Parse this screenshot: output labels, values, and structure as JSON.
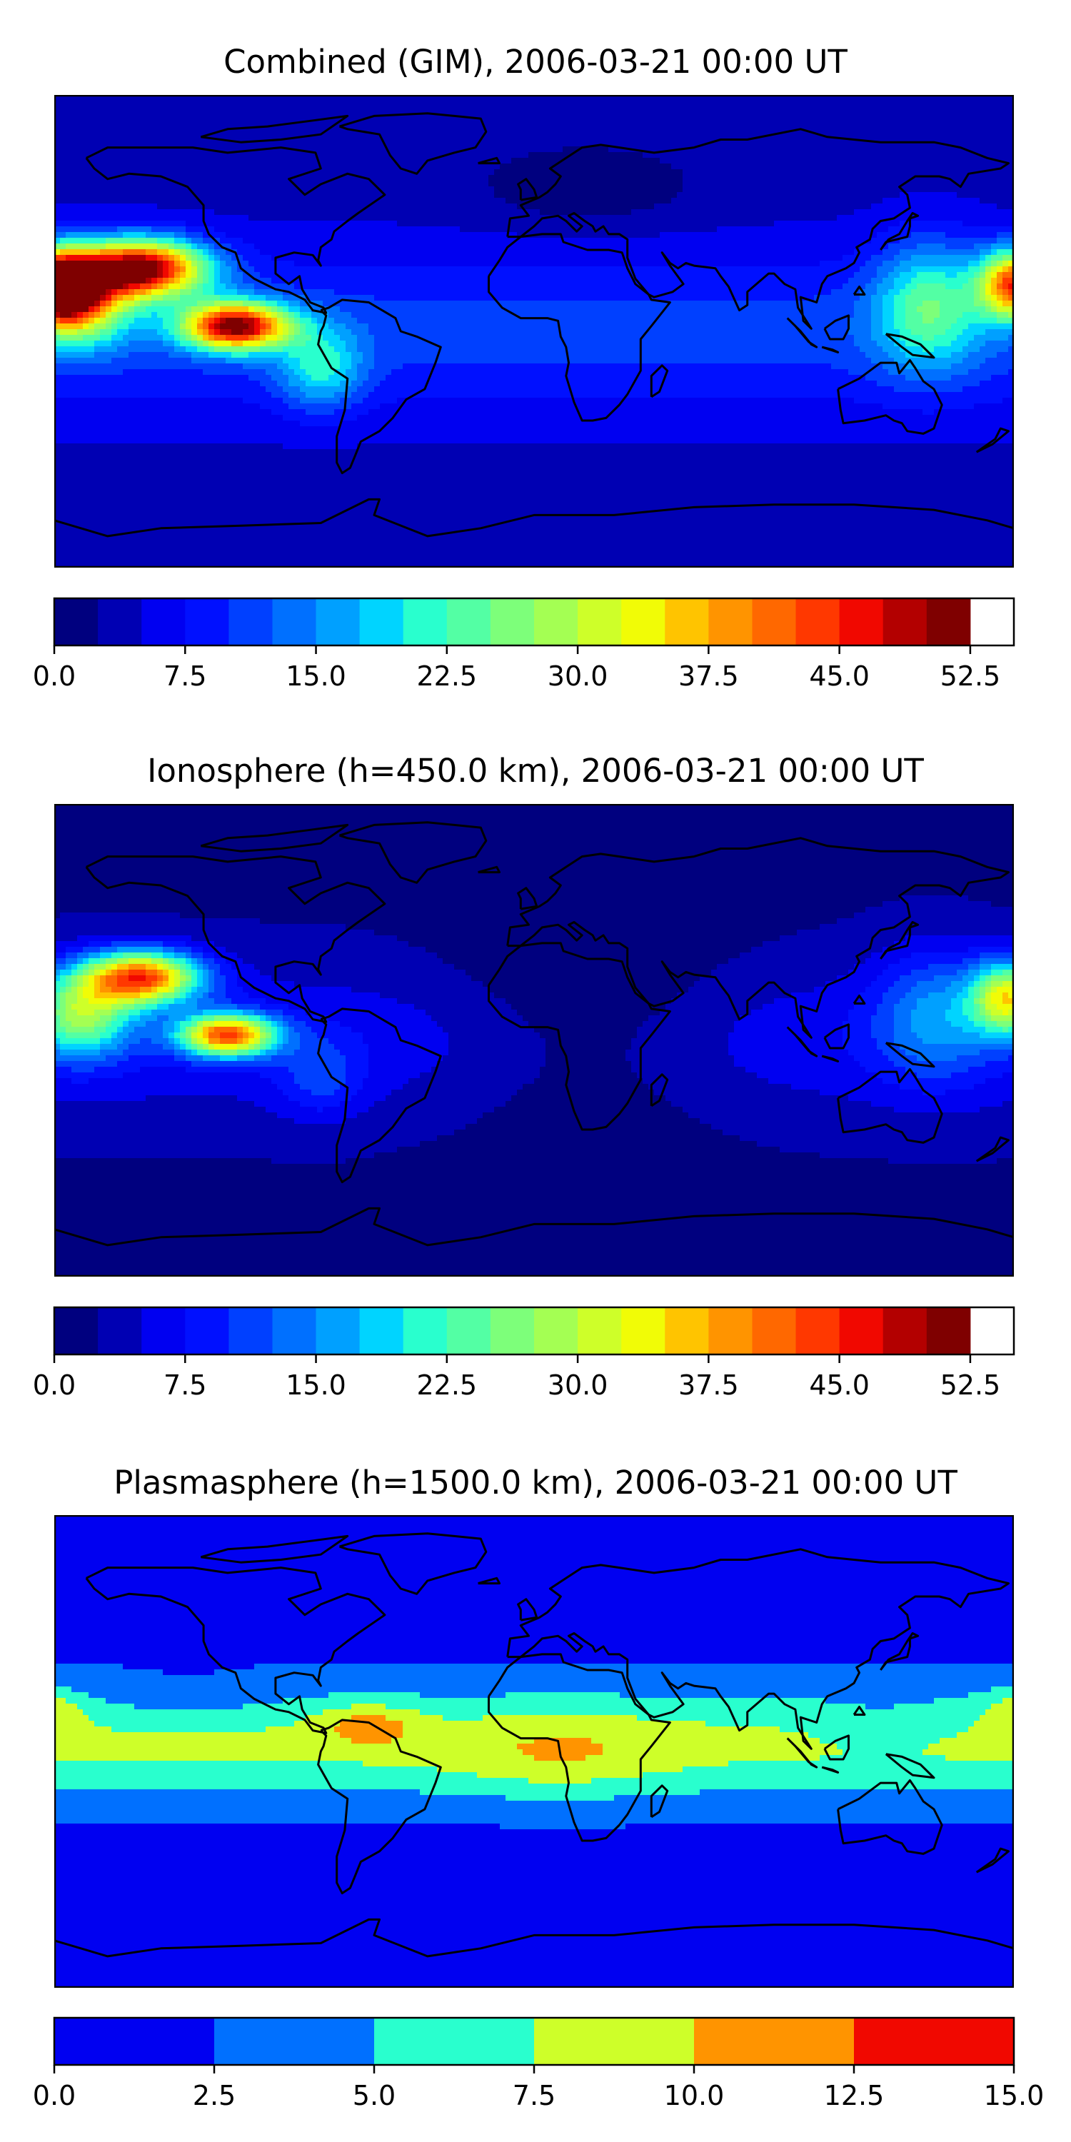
{
  "chart_data": [
    {
      "type": "heatmap",
      "id": "gim",
      "title": "Combined (GIM), 2006-03-21 00:00 UT",
      "colorbar": {
        "ticks": [
          "0.0",
          "7.5",
          "15.0",
          "22.5",
          "30.0",
          "37.5",
          "45.0",
          "52.5"
        ],
        "range": [
          0,
          55
        ],
        "level_step": 2.5,
        "colors": [
          "#00007f",
          "#0000b3",
          "#0000f1",
          "#0010ff",
          "#0040ff",
          "#0070ff",
          "#00a0ff",
          "#00d4ff",
          "#29ffce",
          "#53ffa4",
          "#7dff7a",
          "#a4ff53",
          "#ceff29",
          "#f1fc06",
          "#ffc400",
          "#ff9400",
          "#ff6800",
          "#ff3800",
          "#f10800",
          "#b30000",
          "#7f0000"
        ]
      },
      "features": [
        {
          "lon": -147,
          "lat": 24,
          "value": 53
        },
        {
          "lon": -112,
          "lat": 2,
          "value": 50
        },
        {
          "lon": -170,
          "lat": 12,
          "value": 44
        },
        {
          "lon": 178,
          "lat": 18,
          "value": 42
        },
        {
          "lon": 150,
          "lat": 12,
          "value": 25
        },
        {
          "lon": -80,
          "lat": -14,
          "value": 22
        },
        {
          "lon": 30,
          "lat": -28,
          "value": 12
        },
        {
          "lon": 20,
          "lat": 55,
          "value": 5
        },
        {
          "lon": 20,
          "lat": -55,
          "value": 5
        }
      ]
    },
    {
      "type": "heatmap",
      "id": "iono",
      "title": "Ionosphere  (h=450.0 km), 2006-03-21 00:00 UT",
      "colorbar": {
        "ticks": [
          "0.0",
          "7.5",
          "15.0",
          "22.5",
          "30.0",
          "37.5",
          "45.0",
          "52.5"
        ],
        "range": [
          0,
          55
        ],
        "level_step": 2.5,
        "colors": [
          "#00007f",
          "#0000b3",
          "#0000f1",
          "#0010ff",
          "#0040ff",
          "#0070ff",
          "#00a0ff",
          "#00d4ff",
          "#29ffce",
          "#53ffa4",
          "#7dff7a",
          "#a4ff53",
          "#ceff29",
          "#f1fc06",
          "#ffc400",
          "#ff9400",
          "#ff6800",
          "#ff3800",
          "#f10800",
          "#b30000",
          "#7f0000"
        ]
      },
      "features": [
        {
          "lon": -147,
          "lat": 24,
          "value": 44
        },
        {
          "lon": -115,
          "lat": 2,
          "value": 43
        },
        {
          "lon": 175,
          "lat": 16,
          "value": 34
        },
        {
          "lon": -165,
          "lat": 10,
          "value": 32
        },
        {
          "lon": 20,
          "lat": 10,
          "value": 1
        },
        {
          "lon": 20,
          "lat": -45,
          "value": 2
        }
      ]
    },
    {
      "type": "heatmap",
      "id": "plasma",
      "title": "Plasmasphere (h=1500.0 km), 2006-03-21 00:00 UT",
      "colorbar": {
        "ticks": [
          "0.0",
          "2.5",
          "5.0",
          "7.5",
          "10.0",
          "12.5",
          "15.0"
        ],
        "range": [
          0,
          15
        ],
        "level_step": 2.5,
        "colors": [
          "#0000f1",
          "#0070ff",
          "#29ffce",
          "#ceff29",
          "#ff9400",
          "#f10800"
        ]
      },
      "features": [
        {
          "lon": -62,
          "lat": 10,
          "value": 11
        },
        {
          "lon": 178,
          "lat": 16,
          "value": 10.5
        },
        {
          "lon": -175,
          "lat": 16,
          "value": 10.2
        },
        {
          "lon": 10,
          "lat": 0,
          "value": 8.5
        },
        {
          "lon": 0,
          "lat": -52,
          "value": 1.5
        }
      ]
    }
  ]
}
